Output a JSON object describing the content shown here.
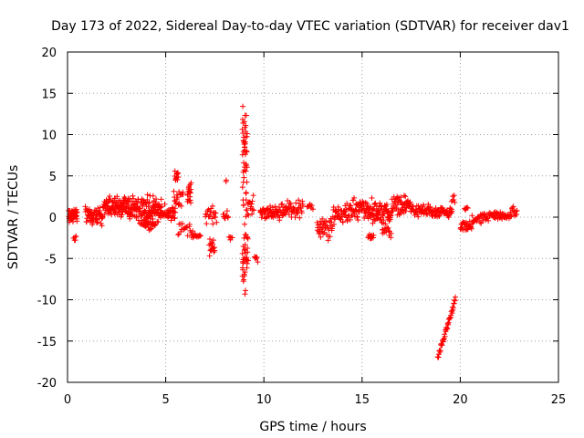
{
  "chart_data": {
    "type": "scatter",
    "title": "Day 173 of 2022, Sidereal Day-to-day VTEC variation (SDTVAR) for receiver dav1",
    "xlabel": "GPS time / hours",
    "ylabel": "SDTVAR / TECUs",
    "xlim": [
      0,
      25
    ],
    "ylim": [
      -20,
      20
    ],
    "xticks": [
      "0",
      "5",
      "10",
      "15",
      "20",
      "25"
    ],
    "yticks": [
      "-20",
      "-15",
      "-10",
      "-5",
      "0",
      "5",
      "10",
      "15",
      "20"
    ],
    "grid": true,
    "marker": "+",
    "color": "#ff0000",
    "segments": [
      {
        "x0": 0.05,
        "x1": 0.5,
        "yc": 0.2,
        "spread": 1.0,
        "n": 45
      },
      {
        "x0": 0.3,
        "x1": 0.45,
        "yc": -2.6,
        "spread": 0.4,
        "n": 5
      },
      {
        "x0": 0.9,
        "x1": 1.8,
        "yc": 0.3,
        "spread": 1.4,
        "n": 60
      },
      {
        "x0": 1.8,
        "x1": 3.5,
        "yc": 1.2,
        "spread": 1.6,
        "n": 140
      },
      {
        "x0": 3.5,
        "x1": 4.8,
        "yc": 0.8,
        "spread": 2.2,
        "n": 110
      },
      {
        "x0": 3.8,
        "x1": 4.5,
        "yc": -0.9,
        "spread": 0.8,
        "n": 25
      },
      {
        "x0": 4.8,
        "x1": 5.5,
        "yc": 0.5,
        "spread": 1.3,
        "n": 40
      },
      {
        "x0": 5.45,
        "x1": 5.65,
        "yc": 5.2,
        "spread": 0.9,
        "n": 12
      },
      {
        "x0": 5.4,
        "x1": 5.9,
        "yc": 2.5,
        "spread": 1.5,
        "n": 18
      },
      {
        "x0": 6.1,
        "x1": 6.3,
        "yc": 3.0,
        "spread": 2.0,
        "n": 18
      },
      {
        "x0": 5.6,
        "x1": 6.4,
        "yc": -1.5,
        "spread": 1.0,
        "n": 20
      },
      {
        "x0": 6.3,
        "x1": 6.8,
        "yc": -2.3,
        "spread": 0.4,
        "n": 14
      },
      {
        "x0": 7.0,
        "x1": 7.6,
        "yc": 0.2,
        "spread": 1.5,
        "n": 20
      },
      {
        "x0": 7.2,
        "x1": 7.5,
        "yc": -3.8,
        "spread": 1.3,
        "n": 16
      },
      {
        "x0": 7.9,
        "x1": 8.2,
        "yc": 0.2,
        "spread": 0.8,
        "n": 10
      },
      {
        "x0": 8.05,
        "x1": 8.1,
        "yc": 4.3,
        "spread": 0.3,
        "n": 2
      },
      {
        "x0": 8.2,
        "x1": 8.4,
        "yc": -2.5,
        "spread": 0.3,
        "n": 5
      },
      {
        "x0": 8.9,
        "x1": 9.15,
        "yc": 8.5,
        "spread": 6.5,
        "n": 45
      },
      {
        "x0": 8.9,
        "x1": 9.2,
        "yc": -4.0,
        "spread": 7.5,
        "n": 45
      },
      {
        "x0": 9.2,
        "x1": 9.5,
        "yc": 1.5,
        "spread": 1.5,
        "n": 12
      },
      {
        "x0": 9.5,
        "x1": 9.7,
        "yc": -5.0,
        "spread": 1.0,
        "n": 6
      },
      {
        "x0": 9.8,
        "x1": 10.8,
        "yc": 0.5,
        "spread": 1.0,
        "n": 50
      },
      {
        "x0": 10.8,
        "x1": 12.0,
        "yc": 1.0,
        "spread": 1.3,
        "n": 55
      },
      {
        "x0": 12.2,
        "x1": 12.5,
        "yc": 1.5,
        "spread": 0.8,
        "n": 8
      },
      {
        "x0": 12.7,
        "x1": 13.5,
        "yc": -1.5,
        "spread": 1.8,
        "n": 40
      },
      {
        "x0": 13.5,
        "x1": 14.5,
        "yc": 0.5,
        "spread": 1.4,
        "n": 50
      },
      {
        "x0": 14.5,
        "x1": 15.5,
        "yc": 1.0,
        "spread": 1.5,
        "n": 60
      },
      {
        "x0": 15.3,
        "x1": 15.6,
        "yc": -2.5,
        "spread": 0.6,
        "n": 10
      },
      {
        "x0": 15.5,
        "x1": 16.5,
        "yc": 0.5,
        "spread": 1.5,
        "n": 70
      },
      {
        "x0": 16.0,
        "x1": 16.5,
        "yc": -1.8,
        "spread": 0.9,
        "n": 15
      },
      {
        "x0": 16.5,
        "x1": 17.5,
        "yc": 1.5,
        "spread": 1.3,
        "n": 55
      },
      {
        "x0": 17.5,
        "x1": 18.5,
        "yc": 0.8,
        "spread": 0.9,
        "n": 45
      },
      {
        "x0": 18.5,
        "x1": 19.6,
        "yc": 0.5,
        "spread": 0.8,
        "n": 50
      },
      {
        "x0": 19.55,
        "x1": 19.75,
        "yc": 2.0,
        "spread": 0.8,
        "n": 6
      },
      {
        "x0": 20.0,
        "x1": 20.6,
        "yc": -1.2,
        "spread": 0.8,
        "n": 30
      },
      {
        "x0": 20.2,
        "x1": 20.4,
        "yc": 1.0,
        "spread": 0.4,
        "n": 6
      },
      {
        "x0": 20.6,
        "x1": 21.5,
        "yc": -0.2,
        "spread": 0.7,
        "n": 35
      },
      {
        "x0": 21.5,
        "x1": 22.5,
        "yc": 0.2,
        "spread": 0.7,
        "n": 40
      },
      {
        "x0": 22.5,
        "x1": 22.9,
        "yc": 0.5,
        "spread": 1.0,
        "n": 15
      }
    ],
    "trend": {
      "x0": 18.85,
      "x1": 19.75,
      "y0": -17.0,
      "y1": -10.0,
      "n": 45,
      "jitter": 0.7
    }
  }
}
